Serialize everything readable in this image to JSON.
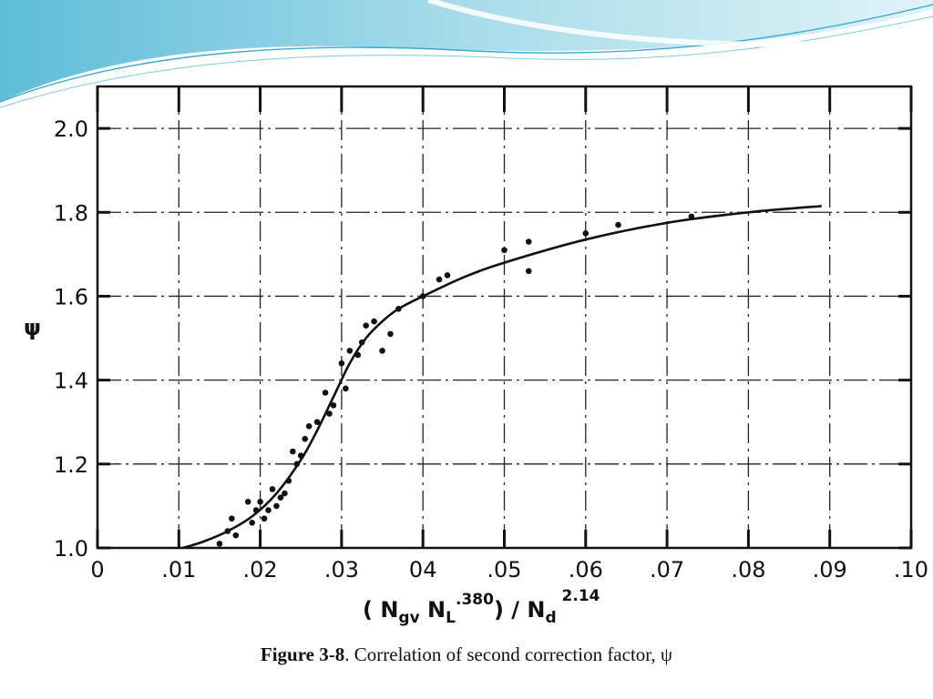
{
  "slide": {
    "caption_bold": "Figure 3-8",
    "caption_rest": ". Correlation of second correction factor, ψ",
    "accent_colors": [
      "#7fcbe0",
      "#b9e6f2",
      "#3aa9cf"
    ]
  },
  "chart_data": {
    "type": "scatter",
    "title": "",
    "ylabel": "ψ",
    "xlabel_parts": {
      "open": "( N",
      "sub1": "gv",
      "mid": " N",
      "sub2": "L",
      "sup1": ".380",
      "close": ") / N",
      "sub3": "d",
      "sup2": " 2.14"
    },
    "xlim": [
      0,
      0.1
    ],
    "ylim": [
      1.0,
      2.1
    ],
    "x_tick_labels": [
      "0",
      ".01",
      ".02",
      ".03",
      "04",
      ".05",
      ".06",
      ".07",
      ".08",
      ".09",
      ".10"
    ],
    "y_tick_labels": [
      "1.0",
      "1.2",
      "1.4",
      "1.6",
      "1.8",
      "2.0"
    ],
    "grid": true,
    "series": [
      {
        "kind": "points",
        "x": [
          0.015,
          0.016,
          0.0165,
          0.017,
          0.0185,
          0.019,
          0.0195,
          0.02,
          0.0205,
          0.021,
          0.0215,
          0.022,
          0.0225,
          0.023,
          0.0235,
          0.024,
          0.0245,
          0.025,
          0.0255,
          0.026,
          0.027,
          0.028,
          0.0285,
          0.029,
          0.03,
          0.0305,
          0.031,
          0.032,
          0.0325,
          0.033,
          0.034,
          0.035,
          0.036,
          0.037,
          0.04,
          0.042,
          0.043,
          0.05,
          0.053,
          0.053,
          0.06,
          0.064,
          0.073
        ],
        "y": [
          1.01,
          1.04,
          1.07,
          1.03,
          1.11,
          1.06,
          1.09,
          1.11,
          1.07,
          1.09,
          1.14,
          1.1,
          1.12,
          1.13,
          1.16,
          1.23,
          1.2,
          1.22,
          1.26,
          1.29,
          1.3,
          1.37,
          1.32,
          1.34,
          1.44,
          1.38,
          1.47,
          1.46,
          1.49,
          1.53,
          1.54,
          1.47,
          1.51,
          1.57,
          1.6,
          1.64,
          1.65,
          1.71,
          1.73,
          1.66,
          1.75,
          1.77,
          1.79
        ]
      },
      {
        "kind": "curve",
        "x": [
          0.0105,
          0.013,
          0.016,
          0.019,
          0.022,
          0.025,
          0.027,
          0.029,
          0.031,
          0.033,
          0.035,
          0.037,
          0.04,
          0.045,
          0.05,
          0.06,
          0.07,
          0.08,
          0.089
        ],
        "y": [
          1.0,
          1.015,
          1.04,
          1.075,
          1.13,
          1.21,
          1.28,
          1.36,
          1.44,
          1.5,
          1.54,
          1.57,
          1.6,
          1.645,
          1.68,
          1.735,
          1.775,
          1.8,
          1.815
        ]
      }
    ]
  }
}
